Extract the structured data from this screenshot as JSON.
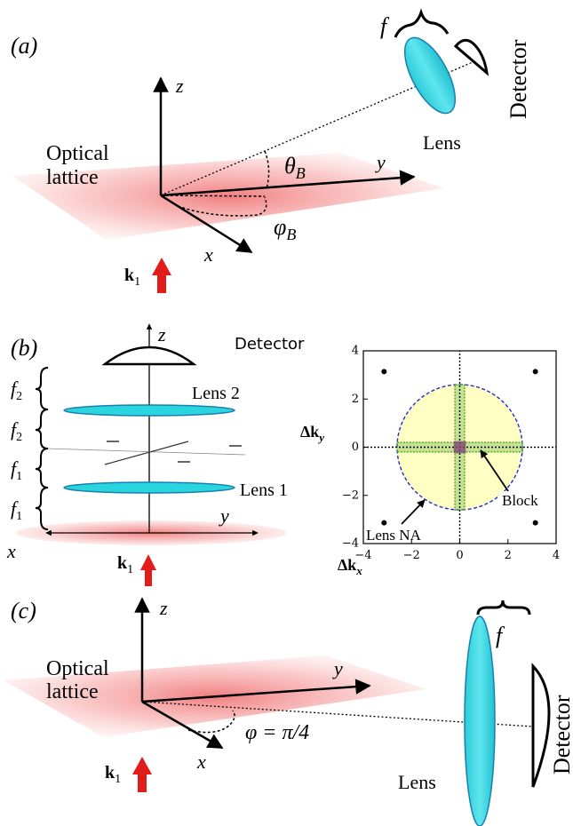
{
  "panel_a": {
    "label": "(a)",
    "f_label": "f",
    "detector_label": "Detector",
    "lens_label": "Lens",
    "z_label": "z",
    "y_label": "y",
    "x_label": "x",
    "lattice_line1": "Optical",
    "lattice_line2": "lattice",
    "theta_label": "θ",
    "theta_sub": "B",
    "phi_label": "φ",
    "phi_sub": "B",
    "k_label": "k",
    "k_sub": "1"
  },
  "panel_b": {
    "label": "(b)",
    "z_label": "z",
    "detector_label": "Detector",
    "lens2_label": "Lens 2",
    "lens1_label": "Lens 1",
    "f2_top": "f",
    "f2_top_sub": "2",
    "f2_bottom": "f",
    "f2_bottom_sub": "2",
    "f1_top": "f",
    "f1_top_sub": "1",
    "f1_bottom": "f",
    "f1_bottom_sub": "1",
    "y_label": "y",
    "x_label": "x",
    "k_label": "k",
    "k_sub": "1",
    "colors": {
      "lens": "#29d6e0",
      "lens_edge": "#1a7fb0",
      "arrow": "#e21b1b"
    }
  },
  "panel_b_plot": {
    "xlabel": "Δk",
    "xlabel_sub": "x",
    "ylabel": "Δk",
    "ylabel_sub": "y",
    "annotation_na": "Lens NA",
    "annotation_block": "Block",
    "xticks": [
      "−4",
      "−2",
      "0",
      "2",
      "4"
    ],
    "yticks": [
      "4",
      "2",
      "0",
      "−2",
      "−4"
    ],
    "xlim": [
      -4,
      4
    ],
    "ylim": [
      -4,
      4
    ],
    "na_radius": 2.6,
    "block_halfwidth": 0.2,
    "peaks": [
      [
        -3.14,
        3.14
      ],
      [
        3.14,
        3.14
      ],
      [
        -3.14,
        -3.14
      ],
      [
        3.14,
        -3.14
      ]
    ],
    "colors": {
      "na_fill": "#ffffc4",
      "na_edge": "#1f2fd0",
      "block": "#5aa836"
    }
  },
  "panel_c": {
    "label": "(c)",
    "z_label": "z",
    "y_label": "y",
    "x_label": "x",
    "f_label": "f",
    "lattice_line1": "Optical",
    "lattice_line2": "lattice",
    "phi_text": "φ = π/4",
    "lens_label": "Lens",
    "detector_label": "Detector",
    "k_label": "k",
    "k_sub": "1"
  }
}
